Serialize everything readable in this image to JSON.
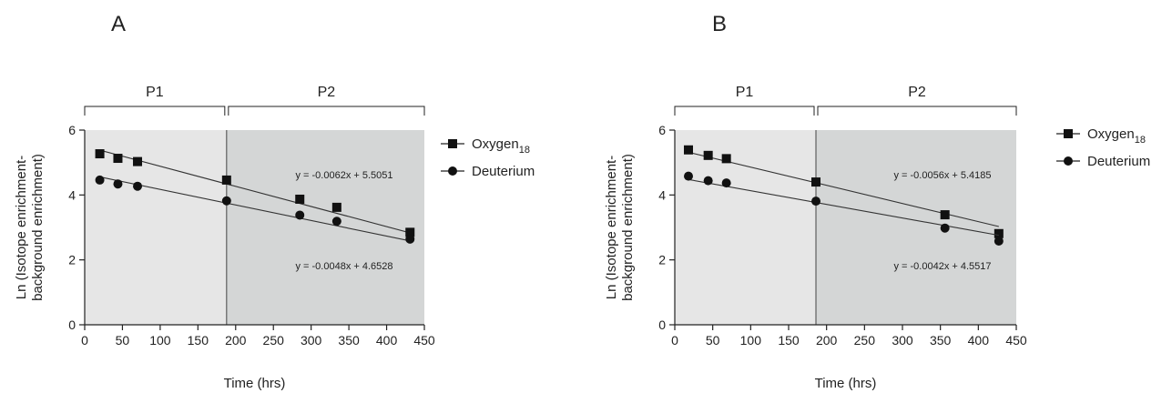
{
  "figure": {
    "legend": {
      "oxygen": {
        "name": "Oxygen",
        "subscript": "18",
        "marker": "square-marker"
      },
      "deuterium": {
        "name": "Deuterium",
        "marker": "circle-marker"
      }
    },
    "colors": {
      "p1_shading": "#e6e6e6",
      "p2_shading": "#d4d6d6",
      "marker": "#111111",
      "line": "#333333"
    }
  },
  "chart_data": [
    {
      "type": "scatter",
      "panel_label": "A",
      "xlabel": "Time (hrs)",
      "ylabel_lines": [
        "Ln (Isotope enrichment-",
        "background enrichment)"
      ],
      "xlim": [
        0,
        450
      ],
      "ylim": [
        0,
        6
      ],
      "xticks": [
        0,
        50,
        100,
        150,
        200,
        250,
        300,
        350,
        400,
        450
      ],
      "yticks": [
        0,
        2,
        4,
        6
      ],
      "period_split": 188,
      "periods": [
        {
          "label": "P1",
          "range": [
            0,
            188
          ]
        },
        {
          "label": "P2",
          "range": [
            188,
            450
          ]
        }
      ],
      "series": [
        {
          "name": "Oxygen18",
          "marker": "square",
          "x": [
            20,
            44,
            70,
            188,
            285,
            334,
            431
          ],
          "y": [
            5.27,
            5.13,
            5.03,
            4.46,
            3.87,
            3.62,
            2.85
          ],
          "fit": {
            "slope": -0.0062,
            "intercept": 5.5051,
            "label": "y = -0.0062x + 5.5051"
          }
        },
        {
          "name": "Deuterium",
          "marker": "circle",
          "x": [
            20,
            44,
            70,
            188,
            285,
            334,
            431
          ],
          "y": [
            4.46,
            4.34,
            4.27,
            3.82,
            3.38,
            3.19,
            2.64
          ],
          "fit": {
            "slope": -0.0048,
            "intercept": 4.6528,
            "label": "y = -0.0048x + 4.6528"
          }
        }
      ]
    },
    {
      "type": "scatter",
      "panel_label": "B",
      "xlabel": "Time (hrs)",
      "ylabel_lines": [
        "Ln (Isotope enrichment-",
        "background enrichment)"
      ],
      "xlim": [
        0,
        450
      ],
      "ylim": [
        0,
        6
      ],
      "xticks": [
        0,
        50,
        100,
        150,
        200,
        250,
        300,
        350,
        400,
        450
      ],
      "yticks": [
        0,
        2,
        4,
        6
      ],
      "period_split": 186,
      "periods": [
        {
          "label": "P1",
          "range": [
            0,
            186
          ]
        },
        {
          "label": "P2",
          "range": [
            186,
            450
          ]
        }
      ],
      "series": [
        {
          "name": "Oxygen18",
          "marker": "square",
          "x": [
            18,
            44,
            68,
            186,
            356,
            427
          ],
          "y": [
            5.39,
            5.22,
            5.12,
            4.4,
            3.39,
            2.81
          ],
          "fit": {
            "slope": -0.0056,
            "intercept": 5.4185,
            "label": "y = -0.0056x + 5.4185"
          }
        },
        {
          "name": "Deuterium",
          "marker": "circle",
          "x": [
            18,
            44,
            68,
            186,
            356,
            427
          ],
          "y": [
            4.58,
            4.44,
            4.37,
            3.81,
            2.98,
            2.58
          ],
          "fit": {
            "slope": -0.0042,
            "intercept": 4.5517,
            "label": "y = -0.0042x + 4.5517"
          }
        }
      ]
    }
  ]
}
